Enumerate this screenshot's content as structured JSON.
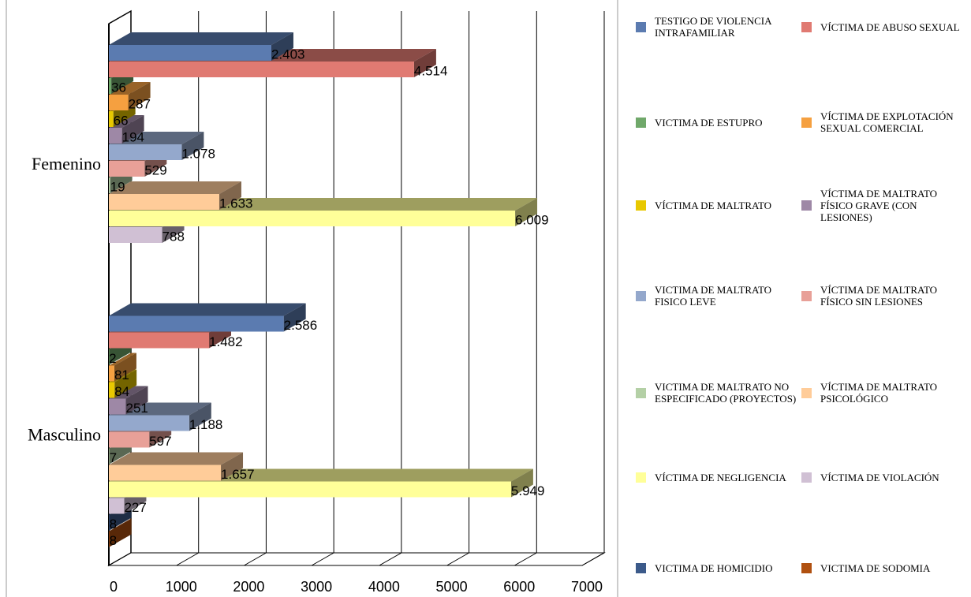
{
  "chart_data": {
    "type": "bar3d_horizontal",
    "categories": [
      "Femenino",
      "Masculino"
    ],
    "xlim": [
      0,
      7000
    ],
    "xticks": [
      0,
      1000,
      2000,
      3000,
      4000,
      5000,
      6000,
      7000
    ],
    "grid": true,
    "legend": "right",
    "series": [
      {
        "name": "TESTIGO DE VIOLENCIA INTRAFAMILIAR",
        "color": "#5b7bb0",
        "values": [
          2403,
          2586
        ],
        "value_labels": [
          "2.403",
          "2.586"
        ]
      },
      {
        "name": "VÍCTIMA DE ABUSO SEXUAL",
        "color": "#e07a72",
        "values": [
          4514,
          1482
        ],
        "value_labels": [
          "4.514",
          "1.482"
        ]
      },
      {
        "name": "VICTIMA DE ESTUPRO",
        "color": "#70a86a",
        "values": [
          36,
          2
        ],
        "value_labels": [
          "36",
          "2"
        ]
      },
      {
        "name": "VÍCTIMA DE EXPLOTACIÓN SEXUAL COMERCIAL",
        "color": "#f5a040",
        "values": [
          287,
          81
        ],
        "value_labels": [
          "287",
          "81"
        ]
      },
      {
        "name": "VÍCTIMA DE MALTRATO",
        "color": "#e8c800",
        "values": [
          66,
          84
        ],
        "value_labels": [
          "66",
          "84"
        ]
      },
      {
        "name": "VÍCTIMA DE MALTRATO FÍSICO GRAVE (CON LESIONES)",
        "color": "#9e88a6",
        "values": [
          194,
          251
        ],
        "value_labels": [
          "194",
          "251"
        ]
      },
      {
        "name": "VICTIMA DE MALTRATO FISICO LEVE",
        "color": "#94a8cc",
        "values": [
          1078,
          1188
        ],
        "value_labels": [
          "1.078",
          "1.188"
        ]
      },
      {
        "name": "VÍCTIMA DE MALTRATO FÍSICO SIN LESIONES",
        "color": "#e8a098",
        "values": [
          529,
          597
        ],
        "value_labels": [
          "529",
          "597"
        ]
      },
      {
        "name": "VICTIMA DE MALTRATO NO ESPECIFICADO (PROYECTOS)",
        "color": "#b4d0a6",
        "values": [
          19,
          7
        ],
        "value_labels": [
          "19",
          "7"
        ]
      },
      {
        "name": "VÍCTIMA DE MALTRATO PSICOLÓGICO",
        "color": "#ffcc99",
        "values": [
          1633,
          1657
        ],
        "value_labels": [
          "1.633",
          "1.657"
        ]
      },
      {
        "name": "VÍCTIMA DE NEGLIGENCIA",
        "color": "#ffff99",
        "values": [
          6009,
          5949
        ],
        "value_labels": [
          "6.009",
          "5.949"
        ]
      },
      {
        "name": "VÍCTIMA DE VIOLACIÓN",
        "color": "#d0c0d4",
        "values": [
          788,
          227
        ],
        "value_labels": [
          "788",
          "227"
        ]
      },
      {
        "name": "VICTIMA DE HOMICIDIO",
        "color": "#3c5a8a",
        "values": [
          null,
          8
        ],
        "value_labels": [
          null,
          "8"
        ]
      },
      {
        "name": "VICTIMA DE SODOMIA",
        "color": "#b05010",
        "values": [
          null,
          8
        ],
        "value_labels": [
          null,
          "8"
        ]
      }
    ]
  }
}
